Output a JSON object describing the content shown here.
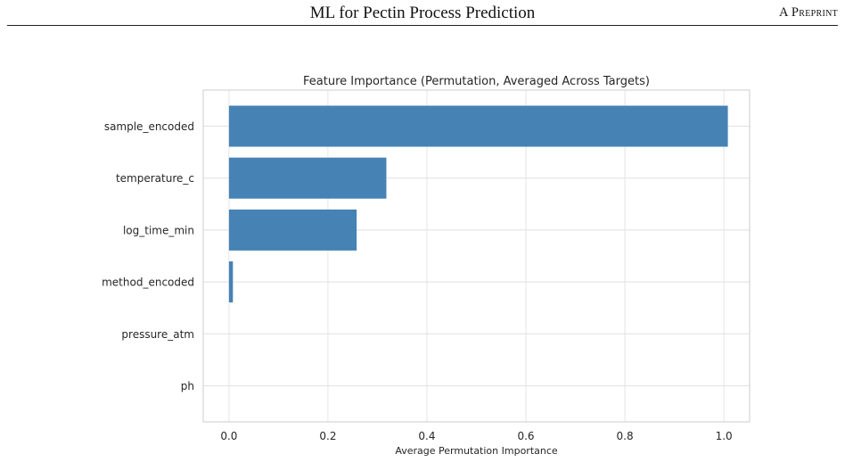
{
  "header": {
    "title": "ML for Pectin Process Prediction",
    "right": "A Preprint"
  },
  "chart_data": {
    "type": "bar",
    "orientation": "horizontal",
    "title": "Feature Importance (Permutation, Averaged Across Targets)",
    "xlabel": "Average Permutation Importance",
    "ylabel": "",
    "categories": [
      "sample_encoded",
      "temperature_c",
      "log_time_min",
      "method_encoded",
      "pressure_atm",
      "ph"
    ],
    "values": [
      1.008,
      0.318,
      0.258,
      0.008,
      0.0,
      0.0
    ],
    "xlim": [
      -0.052,
      1.052
    ],
    "xticks": [
      0.0,
      0.2,
      0.4,
      0.6,
      0.8,
      1.0
    ],
    "xtick_labels": [
      "0.0",
      "0.2",
      "0.4",
      "0.6",
      "0.8",
      "1.0"
    ],
    "grid": true,
    "bar_color": "#4682b4",
    "grid_color": "#e5e5e5",
    "frame_color": "#cccccc"
  }
}
